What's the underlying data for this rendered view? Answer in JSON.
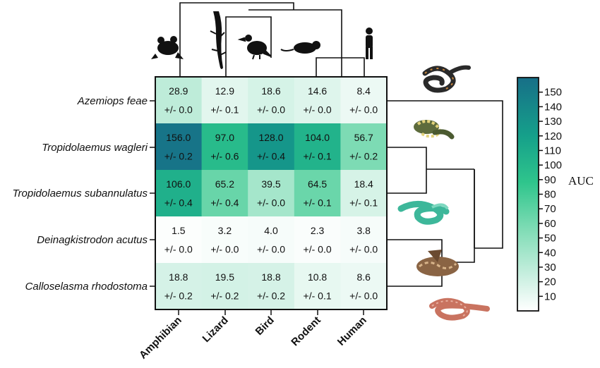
{
  "chart_data": {
    "type": "heatmap",
    "rows": [
      "Azemiops feae",
      "Tropidolaemus wagleri",
      "Tropidolaemus subannulatus",
      "Deinagkistrodon acutus",
      "Calloselasma rhodostoma"
    ],
    "columns": [
      "Amphibian",
      "Lizard",
      "Bird",
      "Rodent",
      "Human"
    ],
    "values": [
      [
        28.9,
        12.9,
        18.6,
        14.6,
        8.4
      ],
      [
        156.0,
        97.0,
        128.0,
        104.0,
        56.7
      ],
      [
        106.0,
        65.2,
        39.5,
        64.5,
        18.4
      ],
      [
        1.5,
        3.2,
        4.0,
        2.3,
        3.8
      ],
      [
        18.8,
        19.5,
        18.8,
        10.8,
        8.6
      ]
    ],
    "value_labels": [
      [
        "28.9",
        "12.9",
        "18.6",
        "14.6",
        "8.4"
      ],
      [
        "156.0",
        "97.0",
        "128.0",
        "104.0",
        "56.7"
      ],
      [
        "106.0",
        "65.2",
        "39.5",
        "64.5",
        "18.4"
      ],
      [
        "1.5",
        "3.2",
        "4.0",
        "2.3",
        "3.8"
      ],
      [
        "18.8",
        "19.5",
        "18.8",
        "10.8",
        "8.6"
      ]
    ],
    "error_labels": [
      [
        "+/- 0.0",
        "+/- 0.1",
        "+/- 0.0",
        "+/- 0.0",
        "+/- 0.0"
      ],
      [
        "+/- 0.2",
        "+/- 0.6",
        "+/- 0.4",
        "+/- 0.1",
        "+/- 0.2"
      ],
      [
        "+/- 0.4",
        "+/- 0.4",
        "+/- 0.0",
        "+/- 0.1",
        "+/- 0.1"
      ],
      [
        "+/- 0.0",
        "+/- 0.0",
        "+/- 0.0",
        "+/- 0.0",
        "+/- 0.0"
      ],
      [
        "+/- 0.2",
        "+/- 0.2",
        "+/- 0.2",
        "+/- 0.1",
        "+/- 0.0"
      ]
    ],
    "colorbar": {
      "label": "AUC",
      "min": 0,
      "max": 160,
      "ticks": [
        10,
        20,
        30,
        40,
        50,
        60,
        70,
        80,
        90,
        100,
        110,
        120,
        130,
        140,
        150
      ],
      "colors": [
        "#ffffff",
        "#c9efe0",
        "#7fdcb5",
        "#2fc58c",
        "#15a08a",
        "#176f88"
      ]
    },
    "column_icons": [
      "frog-icon",
      "lizard-icon",
      "bird-icon",
      "rodent-icon",
      "human-icon"
    ],
    "row_icons": [
      "snake-photo-azemiops",
      "snake-photo-wagleri",
      "snake-photo-subannulatus",
      "snake-photo-deinagkistrodon",
      "snake-photo-calloselasma"
    ]
  }
}
